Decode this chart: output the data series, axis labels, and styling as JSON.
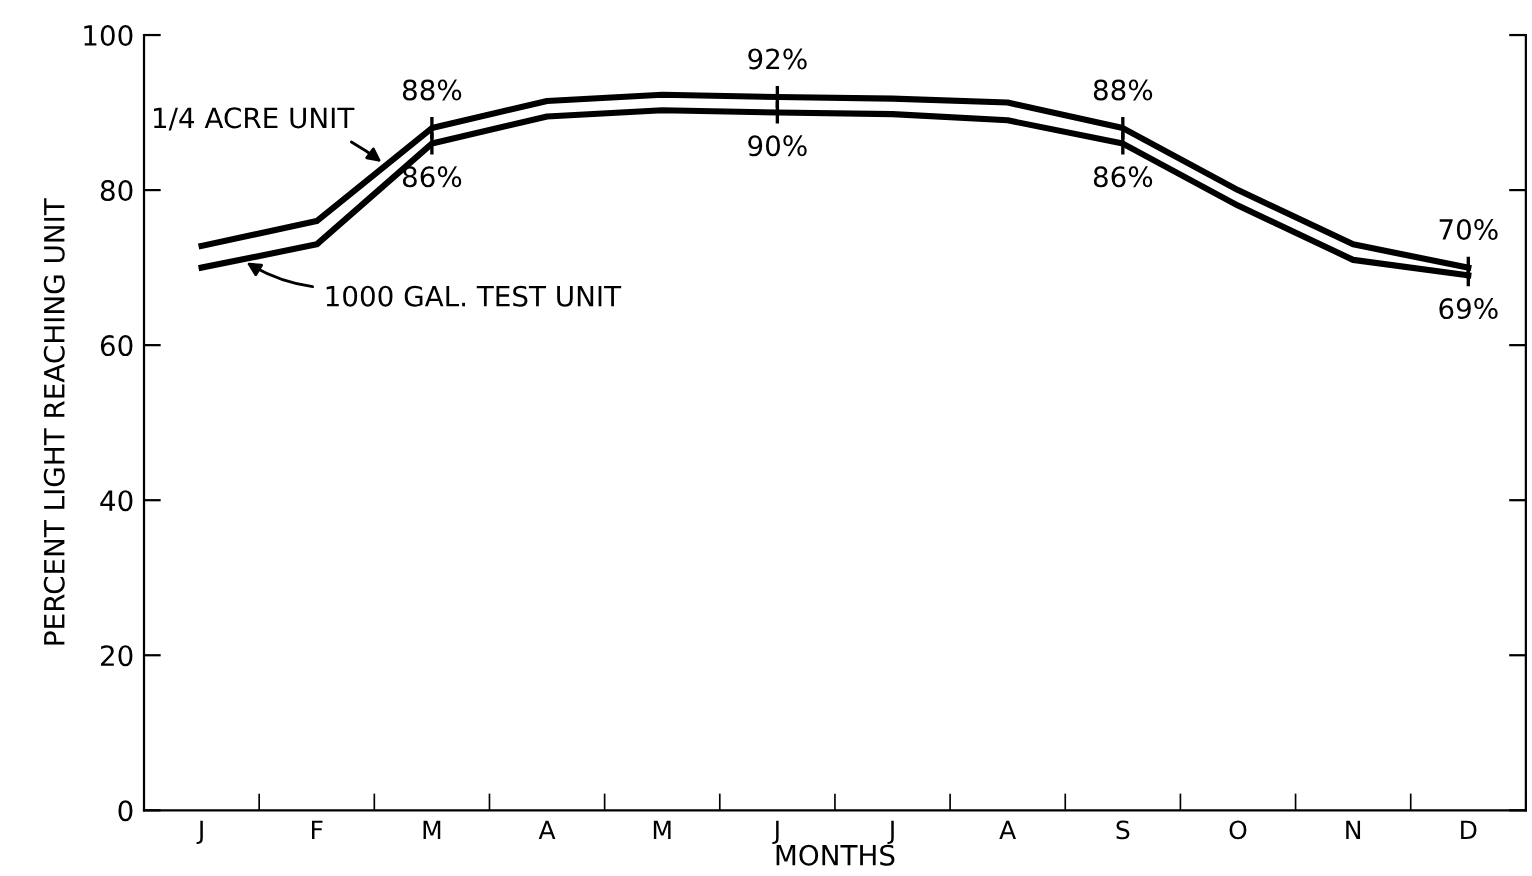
{
  "chart_data": {
    "type": "line",
    "xlabel": "MONTHS",
    "ylabel": "PERCENT LIGHT REACHING UNIT",
    "categories": [
      "J",
      "F",
      "M",
      "A",
      "M",
      "J",
      "J",
      "A",
      "S",
      "O",
      "N",
      "D"
    ],
    "ylim": [
      0,
      100
    ],
    "yticks": [
      0,
      20,
      40,
      60,
      80,
      100
    ],
    "legend": false,
    "line_style": "solid",
    "series": [
      {
        "name": "1/4 ACRE UNIT",
        "color": "#000000",
        "values": [
          72.8,
          76,
          88,
          91.5,
          92.3,
          92,
          91.8,
          91.3,
          88,
          80,
          73,
          70
        ],
        "value_labels": [
          null,
          null,
          "88%",
          null,
          null,
          "92%",
          null,
          null,
          "88%",
          null,
          null,
          "70%"
        ]
      },
      {
        "name": "1000 GAL. TEST UNIT",
        "color": "#000000",
        "values": [
          70,
          73,
          86,
          89.5,
          90.3,
          90,
          89.8,
          89,
          86,
          78,
          71,
          69
        ],
        "value_labels": [
          null,
          null,
          "86%",
          null,
          null,
          "90%",
          null,
          null,
          "86%",
          null,
          null,
          "69%"
        ]
      }
    ]
  }
}
